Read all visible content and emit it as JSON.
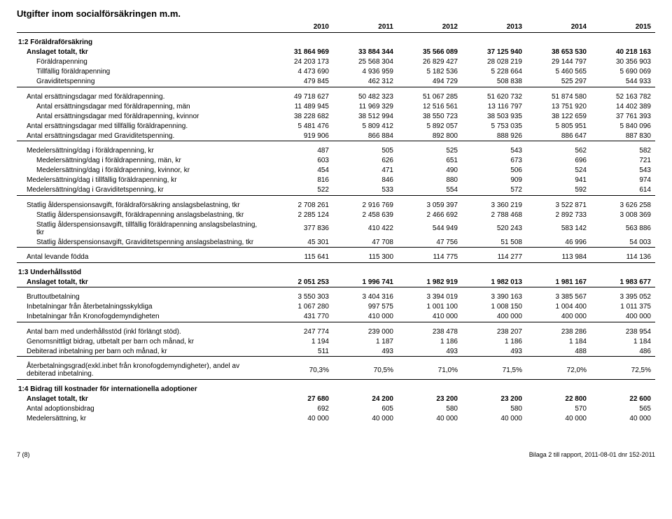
{
  "title": "Utgifter inom socialförsäkringen m.m.",
  "years": [
    "2010",
    "2011",
    "2012",
    "2013",
    "2014",
    "2015"
  ],
  "footer_left": "7 (8)",
  "footer_right": "Bilaga 2 till rapport, 2011-08-01 dnr 152-2011",
  "sections": [
    {
      "heading": "1:2 Föräldraförsäkring",
      "blocks": [
        [
          {
            "label": "Anslaget totalt, tkr",
            "bold": true,
            "ind": 1,
            "v": [
              "31 864 969",
              "33 884 344",
              "35 566 089",
              "37 125 940",
              "38 653 530",
              "40 218 163"
            ]
          },
          {
            "label": "Föräldrapenning",
            "ind": 2,
            "v": [
              "24 203 173",
              "25 568 304",
              "26 829 427",
              "28 028 219",
              "29 144 797",
              "30 356 903"
            ]
          },
          {
            "label": "Tillfällig föräldrapenning",
            "ind": 2,
            "v": [
              "4 473 690",
              "4 936 959",
              "5 182 536",
              "5 228 664",
              "5 460 565",
              "5 690 069"
            ]
          },
          {
            "label": "Graviditetspenning",
            "ind": 2,
            "v": [
              "479 845",
              "462 312",
              "494 729",
              "508 838",
              "525 297",
              "544 933"
            ]
          }
        ],
        [
          {
            "label": "Antal ersättningsdagar med föräldrapenning.",
            "ind": 1,
            "v": [
              "49 718 627",
              "50 482 323",
              "51 067 285",
              "51 620 732",
              "51 874 580",
              "52 163 782"
            ]
          },
          {
            "label": "Antal ersättningsdagar med föräldrapenning, män",
            "ind": 2,
            "v": [
              "11 489 945",
              "11 969 329",
              "12 516 561",
              "13 116 797",
              "13 751 920",
              "14 402 389"
            ]
          },
          {
            "label": "Antal ersättningsdagar med föräldrapenning, kvinnor",
            "ind": 2,
            "v": [
              "38 228 682",
              "38 512 994",
              "38 550 723",
              "38 503 935",
              "38 122 659",
              "37 761 393"
            ]
          },
          {
            "label": "Antal ersättningsdagar med tillfällig föräldrapenning.",
            "ind": 1,
            "v": [
              "5 481 476",
              "5 809 412",
              "5 892 057",
              "5 753 035",
              "5 805 951",
              "5 840 096"
            ]
          },
          {
            "label": "Antal ersättningsdagar med Graviditetspenning.",
            "ind": 1,
            "v": [
              "919 906",
              "866 884",
              "892 800",
              "888 926",
              "886 647",
              "887 830"
            ]
          }
        ],
        [
          {
            "label": "Medelersättning/dag i föräldrapenning, kr",
            "ind": 1,
            "v": [
              "487",
              "505",
              "525",
              "543",
              "562",
              "582"
            ]
          },
          {
            "label": "Medelersättning/dag i föräldrapenning, män, kr",
            "ind": 2,
            "v": [
              "603",
              "626",
              "651",
              "673",
              "696",
              "721"
            ]
          },
          {
            "label": "Medelersättning/dag i föräldrapenning, kvinnor, kr",
            "ind": 2,
            "v": [
              "454",
              "471",
              "490",
              "506",
              "524",
              "543"
            ]
          },
          {
            "label": "Medelersättning/dag i tillfällig föräldrapenning, kr",
            "ind": 1,
            "v": [
              "816",
              "846",
              "880",
              "909",
              "941",
              "974"
            ]
          },
          {
            "label": "Medelersättning/dag i Graviditetspenning, kr",
            "ind": 1,
            "v": [
              "522",
              "533",
              "554",
              "572",
              "592",
              "614"
            ]
          }
        ],
        [
          {
            "label": "Statlig ålderspensionsavgift, föräldraförsäkring anslagsbelastning, tkr",
            "ind": 1,
            "v": [
              "2 708 261",
              "2 916 769",
              "3 059 397",
              "3 360 219",
              "3 522 871",
              "3 626 258"
            ]
          },
          {
            "label": "Statlig ålderspensionsavgift, föräldrapenning anslagsbelastning, tkr",
            "ind": 2,
            "v": [
              "2 285 124",
              "2 458 639",
              "2 466 692",
              "2 788 468",
              "2 892 733",
              "3 008 369"
            ]
          },
          {
            "label": "Statlig ålderspensionsavgift, tillfällig föräldrapenning anslagsbelastning, tkr",
            "ind": 2,
            "v": [
              "377 836",
              "410 422",
              "544 949",
              "520 243",
              "583 142",
              "563 886"
            ]
          },
          {
            "label": "Statlig ålderspensionsavgift, Graviditetspenning anslagsbelastning, tkr",
            "ind": 2,
            "v": [
              "45 301",
              "47 708",
              "47 756",
              "51 508",
              "46 996",
              "54 003"
            ]
          }
        ],
        [
          {
            "label": "Antal levande födda",
            "ind": 1,
            "v": [
              "115 641",
              "115 300",
              "114 775",
              "114 277",
              "113 984",
              "114 136"
            ]
          }
        ]
      ]
    },
    {
      "heading": "1:3 Underhållsstöd",
      "blocks": [
        [
          {
            "label": "Anslaget totalt, tkr",
            "bold": true,
            "ind": 1,
            "v": [
              "2 051 253",
              "1 996 741",
              "1 982 919",
              "1 982 013",
              "1 981 167",
              "1 983 677"
            ]
          }
        ],
        [
          {
            "label": "Bruttoutbetalning",
            "ind": 1,
            "v": [
              "3 550 303",
              "3 404 316",
              "3 394 019",
              "3 390 163",
              "3 385 567",
              "3 395 052"
            ]
          },
          {
            "label": "Inbetalningar från återbetalningsskyldiga",
            "ind": 1,
            "v": [
              "1 067 280",
              "997 575",
              "1 001 100",
              "1 008 150",
              "1 004 400",
              "1 011 375"
            ]
          },
          {
            "label": "Inbetalningar från Kronofogdemyndigheten",
            "ind": 1,
            "v": [
              "431 770",
              "410 000",
              "410 000",
              "400 000",
              "400 000",
              "400 000"
            ]
          }
        ],
        [
          {
            "label": "Antal barn med underhållsstöd (inkl förlängt stöd).",
            "ind": 1,
            "v": [
              "247 774",
              "239 000",
              "238 478",
              "238 207",
              "238 286",
              "238 954"
            ]
          },
          {
            "label": "Genomsnittligt bidrag, utbetalt per barn och månad, kr",
            "ind": 1,
            "v": [
              "1 194",
              "1 187",
              "1 186",
              "1 186",
              "1 184",
              "1 184"
            ]
          },
          {
            "label": "Debiterad inbetalning per barn och månad, kr",
            "ind": 1,
            "v": [
              "511",
              "493",
              "493",
              "493",
              "488",
              "486"
            ]
          }
        ],
        [
          {
            "label": "Återbetalningsgrad(exkl.inbet från kronofogdemyndigheter), andel av debiterad inbetalning.",
            "ind": 1,
            "v": [
              "70,3%",
              "70,5%",
              "71,0%",
              "71,5%",
              "72,0%",
              "72,5%"
            ]
          }
        ]
      ]
    },
    {
      "heading": "1:4 Bidrag till kostnader för internationella adoptioner",
      "blocks": [
        [
          {
            "label": "Anslaget totalt, tkr",
            "bold": true,
            "ind": 1,
            "v": [
              "27 680",
              "24 200",
              "23 200",
              "23 200",
              "22 800",
              "22 600"
            ]
          },
          {
            "label": "Antal adoptionsbidrag",
            "ind": 1,
            "v": [
              "692",
              "605",
              "580",
              "580",
              "570",
              "565"
            ]
          },
          {
            "label": "Medelersättning, kr",
            "ind": 1,
            "v": [
              "40 000",
              "40 000",
              "40 000",
              "40 000",
              "40 000",
              "40 000"
            ]
          }
        ]
      ]
    }
  ]
}
